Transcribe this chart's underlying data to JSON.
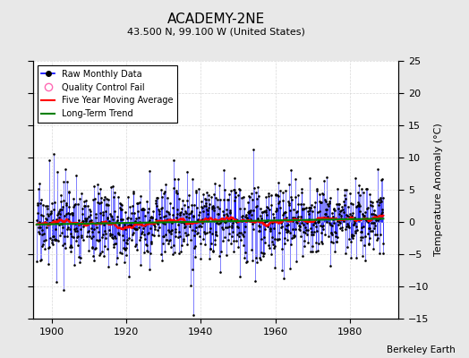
{
  "title": "ACADEMY-2NE",
  "subtitle": "43.500 N, 99.100 W (United States)",
  "ylabel": "Temperature Anomaly (°C)",
  "credit": "Berkeley Earth",
  "xlim": [
    1895,
    1993
  ],
  "ylim": [
    -15,
    25
  ],
  "yticks": [
    -15,
    -10,
    -5,
    0,
    5,
    10,
    15,
    20,
    25
  ],
  "xticks": [
    1900,
    1920,
    1940,
    1960,
    1980
  ],
  "bg_color": "#e8e8e8",
  "plot_bg_color": "#ffffff",
  "seed": 17,
  "n_years": 93,
  "start_year": 1896
}
